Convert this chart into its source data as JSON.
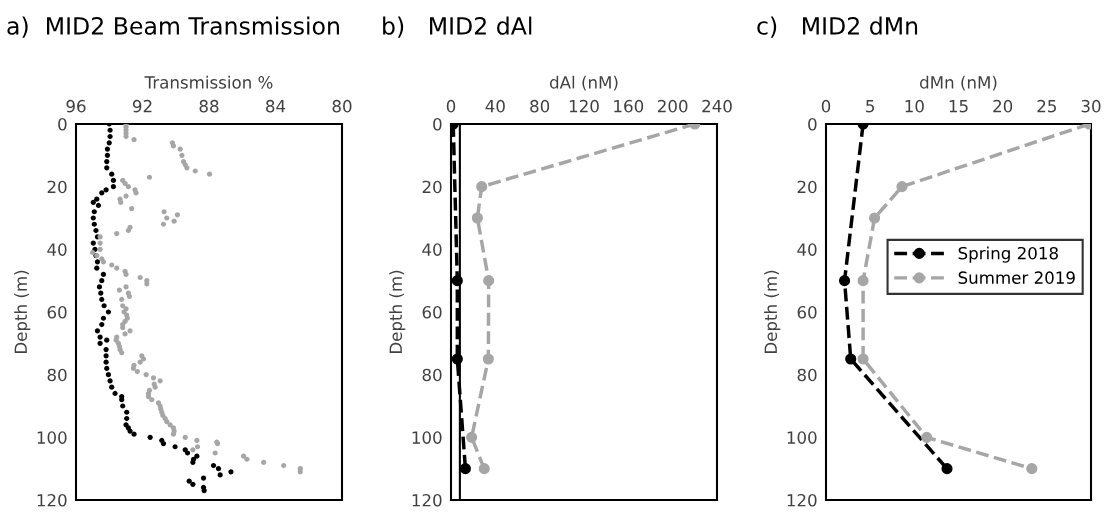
{
  "chart_data": [
    {
      "type": "scatter",
      "title": "a)  MID2 Beam Transmission",
      "xlabel": "Transmission %",
      "ylabel": "Depth (m)",
      "xlim": [
        96,
        80
      ],
      "xticks": [
        96,
        92,
        88,
        84,
        80
      ],
      "ylim": [
        120,
        0
      ],
      "yticks": [
        0,
        20,
        40,
        60,
        80,
        100,
        120
      ],
      "grid": false,
      "legend": false,
      "marker": "circle",
      "series": [
        {
          "color": "#000000",
          "x": [
            94.0,
            93.95,
            93.95,
            94.0,
            94.11,
            94.11,
            94.15,
            94.15,
            93.85,
            93.75,
            93.75,
            94.19,
            94.45,
            94.75,
            94.96,
            94.65,
            94.9,
            94.96,
            94.9,
            94.8,
            94.71,
            94.96,
            94.86,
            94.8,
            94.71,
            94.75,
            94.35,
            94.45,
            94.59,
            94.51,
            94.45,
            94.31,
            94.05,
            94.35,
            94.45,
            94.71,
            94.55,
            94.15,
            94.55,
            94.19,
            94.19,
            94.19,
            94.15,
            94.05,
            93.95,
            93.85,
            93.65,
            93.25,
            93.25,
            93.19,
            92.95,
            92.95,
            92.99,
            92.85,
            92.75,
            92.51,
            91.54,
            90.84,
            90.74,
            90.04,
            89.43,
            89.29,
            88.73,
            88.93,
            88.97,
            87.73,
            87.43,
            86.68,
            87.33,
            88.33,
            89.19,
            88.97,
            88.33,
            88.29
          ],
          "values": [
            0,
            2,
            4,
            6,
            8,
            10,
            12,
            14,
            16,
            18,
            20,
            21,
            22,
            24,
            25,
            26,
            28,
            30,
            32,
            34,
            36,
            38,
            40,
            42,
            44,
            46,
            48,
            50,
            52,
            54,
            56,
            58,
            60,
            62,
            64,
            66,
            68,
            69,
            70,
            72,
            74,
            76,
            78,
            80,
            82,
            84,
            86,
            87,
            88,
            90,
            92,
            94,
            96,
            97,
            98,
            99,
            100,
            101,
            102,
            103,
            104,
            105,
            106,
            107,
            108,
            109,
            110,
            111,
            112,
            113,
            114,
            115,
            116,
            117
          ]
        },
        {
          "color": "#a6a6a6",
          "x": [
            92.99,
            92.99,
            92.99,
            92.99,
            92.99,
            92.51,
            90.2,
            90.14,
            89.73,
            89.63,
            89.53,
            89.43,
            89.33,
            88.83,
            87.97,
            91.58,
            93.19,
            93.05,
            92.85,
            92.45,
            92.39,
            92.99,
            93.35,
            93.31,
            92.65,
            90.7,
            89.9,
            90.54,
            90.1,
            90.74,
            92.75,
            92.85,
            93.55,
            94.55,
            94.55,
            94.55,
            95.0,
            94.75,
            94.45,
            94.35,
            93.85,
            93.55,
            93.05,
            92.99,
            92.14,
            91.74,
            91.74,
            92.99,
            93.39,
            92.85,
            92.79,
            93.25,
            93.19,
            92.99,
            93.11,
            92.95,
            92.91,
            93.05,
            93.19,
            93.19,
            92.75,
            93.05,
            93.55,
            93.59,
            93.45,
            93.39,
            93.35,
            93.25,
            92.04,
            91.94,
            92.14,
            92.51,
            92.55,
            92.31,
            91.78,
            91.34,
            90.94,
            91.3,
            91.24,
            91.58,
            91.64,
            91.64,
            91.44,
            91.04,
            90.94,
            90.9,
            90.84,
            90.78,
            90.64,
            90.54,
            90.34,
            90.14,
            90.1,
            90.14,
            89.43,
            88.73,
            87.53,
            87.49,
            88.69,
            88.97,
            87.63,
            85.92,
            85.72,
            84.71,
            83.51,
            82.51,
            82.51
          ],
          "values": [
            0,
            1,
            2,
            3,
            4,
            5,
            6,
            7,
            8,
            10,
            12,
            13,
            14,
            15,
            16,
            17,
            18,
            19,
            20,
            21,
            22,
            23,
            24,
            25,
            27,
            28,
            29,
            30,
            31,
            32,
            33,
            34,
            35,
            36,
            38,
            40,
            41,
            42,
            43,
            44,
            45,
            46,
            47,
            48,
            49,
            50,
            51,
            52,
            53,
            54,
            55,
            56,
            58,
            59,
            60,
            61,
            62,
            63,
            64,
            65,
            66,
            67,
            68,
            69,
            70,
            71,
            72,
            73,
            74,
            75,
            76,
            77,
            78,
            79,
            80,
            81,
            82,
            83,
            84,
            85,
            86,
            87,
            88,
            89,
            90,
            91,
            92,
            93,
            94,
            95,
            96,
            97,
            98,
            99,
            100,
            101,
            101.5,
            102,
            103,
            104,
            105,
            106,
            107,
            108,
            109,
            110,
            111
          ]
        }
      ]
    },
    {
      "type": "line",
      "title": "b)   MID2 dAl",
      "xlabel": "dAl (nM)",
      "ylabel": "Depth (m)",
      "xlim": [
        0,
        240
      ],
      "xticks": [
        0,
        40,
        80,
        120,
        160,
        200,
        240
      ],
      "ylim": [
        120,
        0
      ],
      "yticks": [
        0,
        20,
        40,
        60,
        80,
        100,
        120
      ],
      "grid": false,
      "legend": false,
      "marker": "circle",
      "line_style": "dashed",
      "ref_lines": [
        {
          "axis": "x",
          "value": 8,
          "color": "#000000",
          "line_style": "solid"
        }
      ],
      "series": [
        {
          "color": "#000000",
          "x": [
            2,
            5.7,
            5.7,
            13
          ],
          "values": [
            0,
            50,
            75,
            110
          ]
        },
        {
          "color": "#a6a6a6",
          "x": [
            220,
            27.7,
            23.8,
            34,
            33.7,
            18.6,
            30
          ],
          "values": [
            0,
            20,
            30,
            50,
            75,
            100,
            110
          ]
        }
      ]
    },
    {
      "type": "line",
      "title": "c)   MID2 dMn",
      "xlabel": "dMn (nM)",
      "ylabel": "Depth (m)",
      "xlim": [
        0,
        30
      ],
      "xticks": [
        0,
        5,
        10,
        15,
        20,
        25,
        30
      ],
      "ylim": [
        120,
        0
      ],
      "yticks": [
        0,
        20,
        40,
        60,
        80,
        100,
        120
      ],
      "grid": false,
      "legend": "right",
      "marker": "circle",
      "line_style": "dashed",
      "series": [
        {
          "name": "Spring 2018",
          "color": "#000000",
          "x": [
            4.2,
            2.1,
            2.8,
            13.7
          ],
          "values": [
            0,
            50,
            75,
            110
          ]
        },
        {
          "name": "Summer 2019",
          "color": "#a6a6a6",
          "x": [
            29.8,
            8.6,
            5.5,
            4.2,
            4.2,
            11.4,
            23.3
          ],
          "values": [
            0,
            20,
            30,
            50,
            75,
            100,
            110
          ]
        }
      ]
    }
  ]
}
